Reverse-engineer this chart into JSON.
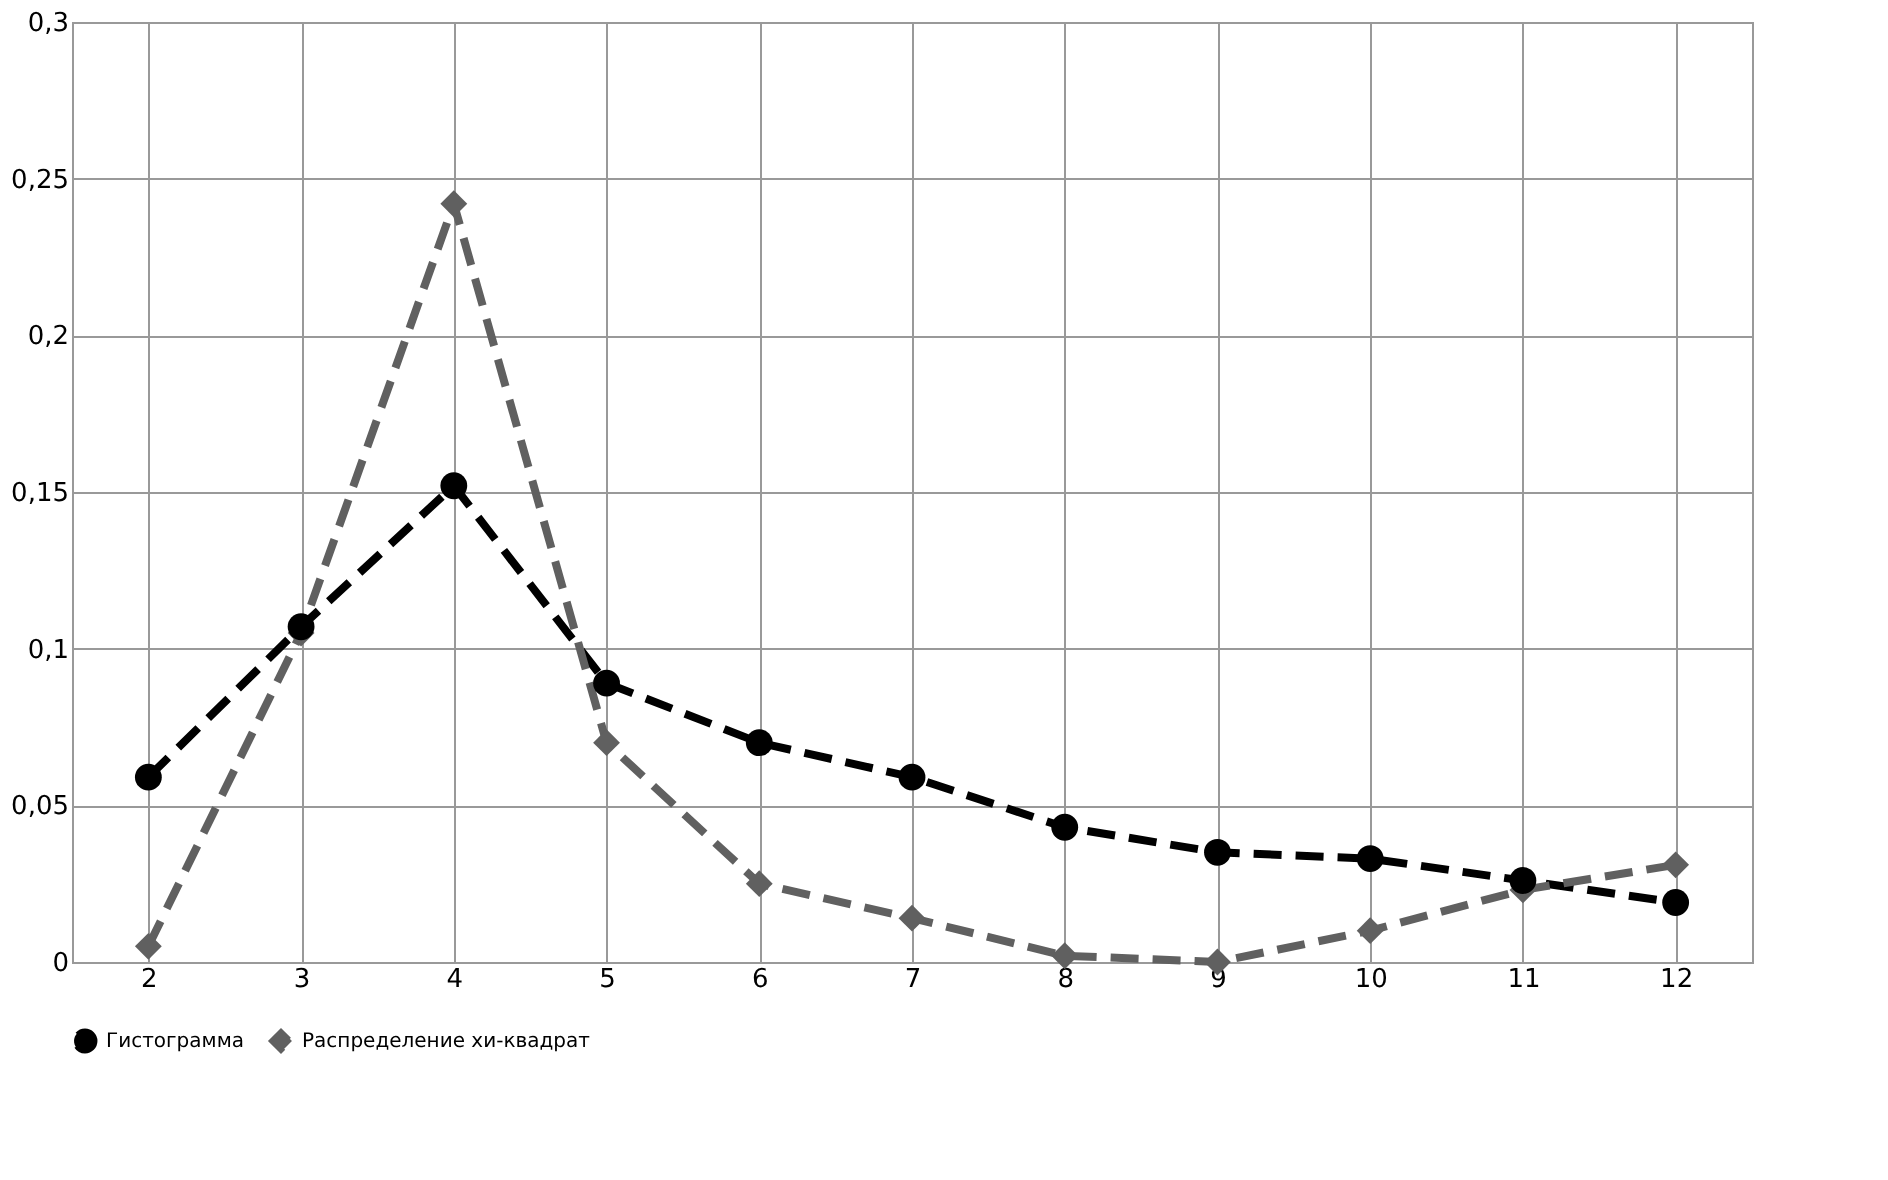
{
  "chart_data": {
    "type": "line",
    "categories": [
      "2",
      "3",
      "4",
      "5",
      "6",
      "7",
      "8",
      "9",
      "10",
      "11",
      "12"
    ],
    "series": [
      {
        "name": "Гистограмма",
        "color": "#000000",
        "marker": "circle",
        "line_style": "dashed",
        "values": [
          0.059,
          0.107,
          0.152,
          0.089,
          0.07,
          0.059,
          0.043,
          0.035,
          0.033,
          0.026,
          0.019
        ]
      },
      {
        "name": "Распределение хи-квадрат",
        "color": "#606060",
        "marker": "diamond",
        "line_style": "dashed",
        "values": [
          0.005,
          0.105,
          0.242,
          0.07,
          0.025,
          0.014,
          0.002,
          0.0,
          0.01,
          0.023,
          0.031
        ]
      }
    ],
    "ylim": [
      0,
      0.3
    ],
    "yticks": [
      {
        "value": 0,
        "label": "0"
      },
      {
        "value": 0.05,
        "label": "0,05"
      },
      {
        "value": 0.1,
        "label": "0,1"
      },
      {
        "value": 0.15,
        "label": "0,15"
      },
      {
        "value": 0.2,
        "label": "0,2"
      },
      {
        "value": 0.25,
        "label": "0,25"
      },
      {
        "value": 0.3,
        "label": "0,3"
      }
    ],
    "grid": true,
    "legend": "bottom"
  }
}
